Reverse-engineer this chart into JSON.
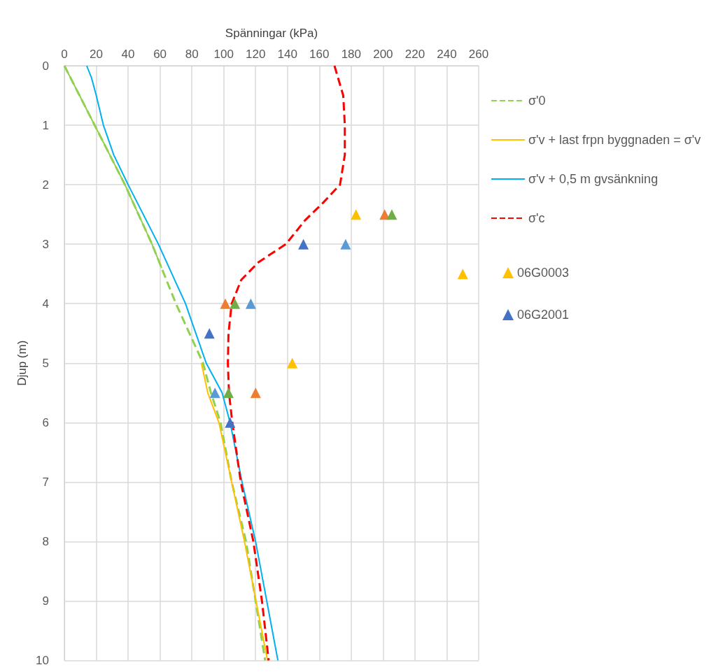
{
  "chart_data": {
    "type": "line",
    "xlabel": "Spänningar (kPa)",
    "ylabel": "Djup (m)",
    "xlim": [
      0,
      260
    ],
    "xticks": [
      0,
      20,
      40,
      60,
      80,
      100,
      120,
      140,
      160,
      180,
      200,
      220,
      240,
      260
    ],
    "ylim": [
      10,
      0
    ],
    "yticks": [
      0,
      1,
      2,
      3,
      4,
      5,
      6,
      7,
      8,
      9,
      10
    ],
    "grid": true,
    "legend": "right",
    "series": [
      {
        "color": "#92d050",
        "line_style": "solid",
        "marker": "none",
        "x": [
          0,
          19,
          38,
          55,
          61
        ],
        "values": [
          0,
          1,
          2,
          3,
          3.4
        ]
      },
      {
        "name": "σ'0",
        "color": "#92d050",
        "line_style": "dashed",
        "marker": "none",
        "x": [
          0,
          19,
          38,
          55,
          70,
          87,
          92,
          98,
          105,
          114,
          126
        ],
        "values": [
          0,
          1,
          2,
          3,
          4,
          5,
          5.5,
          6,
          7,
          8,
          10
        ]
      },
      {
        "name": "σ'v + last frpn byggnaden = σ'v",
        "color": "#ffc000",
        "line_style": "solid",
        "marker": "none",
        "x": [
          86,
          90,
          97,
          105,
          113,
          127.5
        ],
        "values": [
          5,
          5.5,
          6,
          7,
          8,
          10
        ]
      },
      {
        "name": "σ'v + 0,5 m gvsänkning",
        "color": "#00b0f0",
        "line_style": "solid",
        "marker": "none",
        "x": [
          14,
          17,
          20,
          24.5,
          31,
          40,
          59,
          76,
          89,
          99,
          104,
          111.5,
          120,
          134
        ],
        "values": [
          0,
          0.2,
          0.5,
          1,
          1.5,
          2,
          3,
          4,
          5,
          5.5,
          6,
          7,
          8,
          10
        ]
      },
      {
        "name": "σ'c",
        "color": "#ff0000",
        "line_style": "dashed",
        "marker": "none",
        "x": [
          169.5,
          175,
          176,
          176,
          173,
          162.5,
          151,
          139,
          122,
          111,
          105,
          103,
          102.6,
          103.3,
          105.4,
          110.7,
          118.6,
          124,
          128.2
        ],
        "values": [
          0,
          0.5,
          1,
          1.5,
          2,
          2.3,
          2.6,
          3,
          3.3,
          3.6,
          4,
          4.5,
          5,
          5.5,
          6,
          7,
          8,
          9,
          10
        ]
      },
      {
        "type": "scatter",
        "name": "06G0003",
        "color": "#ffc000",
        "marker": "triangle",
        "x": [
          183,
          250,
          143
        ],
        "values": [
          2.5,
          3.5,
          5
        ]
      },
      {
        "type": "scatter",
        "name": "06G2001",
        "color": "#4472c4",
        "marker": "triangle",
        "x": [
          150,
          91,
          104
        ],
        "values": [
          3,
          4.5,
          6
        ]
      },
      {
        "type": "scatter",
        "color": "#ed7d31",
        "marker": "triangle",
        "x": [
          201,
          101,
          120
        ],
        "values": [
          2.5,
          4,
          5.5
        ]
      },
      {
        "type": "scatter",
        "color": "#70ad47",
        "marker": "triangle",
        "x": [
          205.5,
          107,
          103
        ],
        "values": [
          2.5,
          4,
          5.5
        ]
      },
      {
        "type": "scatter",
        "color": "#5b9bd5",
        "marker": "triangle",
        "x": [
          176.5,
          117,
          94.5
        ],
        "values": [
          3,
          4,
          5.5
        ]
      }
    ]
  }
}
